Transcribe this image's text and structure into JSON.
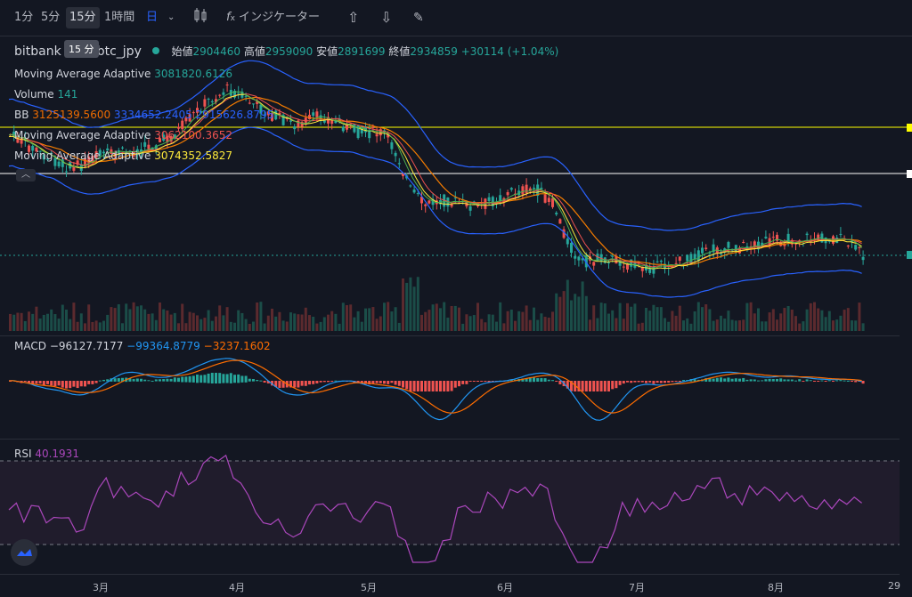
{
  "toolbar": {
    "intervals": [
      "1分",
      "5分",
      "15分",
      "1時間",
      "日"
    ],
    "active_interval": "15分",
    "indicators_label": "インジケーター",
    "tooltip": "15 分"
  },
  "symbol": {
    "exchange": "bitbank",
    "pair": "btc_jpy",
    "open_label": "始値",
    "open": "2904460",
    "high_label": "高値",
    "high": "2959090",
    "low_label": "安値",
    "low": "2891699",
    "close_label": "終値",
    "close": "2934859",
    "change": "+30114 (+1.04%)"
  },
  "legend": {
    "ma1_label": "Moving Average Adaptive",
    "ma1_value": "3081820.6126",
    "volume_label": "Volume",
    "volume_value": "141",
    "bb_label": "BB",
    "bb_basis": "3125139.5600",
    "bb_upper": "3334652.2405",
    "bb_lower": "2915626.8795",
    "ma2_label": "Moving Average Adaptive",
    "ma2_value": "3062100.3652",
    "ma3_label": "Moving Average Adaptive",
    "ma3_value": "3074352.5827"
  },
  "macd": {
    "label": "MACD",
    "v1": "−96127.7177",
    "v2": "−99364.8779",
    "v3": "−3237.1602"
  },
  "rsi": {
    "label": "RSI",
    "value": "40.1931"
  },
  "xaxis": {
    "labels": [
      "3月",
      "4月",
      "5月",
      "6月",
      "7月",
      "8月",
      "29"
    ]
  },
  "colors": {
    "up": "#26a69a",
    "down": "#ef5350",
    "bb": "#2962ff",
    "ma_orange": "#f57c00",
    "ma_yellow": "#ffeb3b",
    "ma_green": "#4caf50",
    "rsi": "#ab47bc",
    "macd_line": "#2196f3",
    "signal_line": "#ff6d00",
    "hline_yellow": "#ffff00",
    "hline_white": "#ffffff"
  }
}
